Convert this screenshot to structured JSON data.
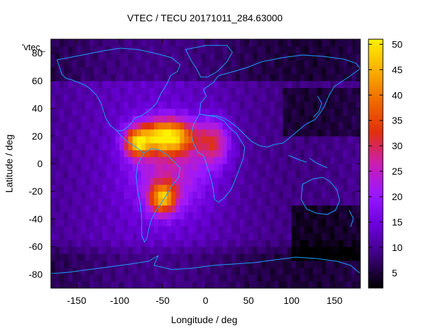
{
  "chart_data": {
    "type": "heatmap",
    "title": "VTEC / TECU 20171011_284.63000",
    "xlabel": "Longitude / deg",
    "ylabel": "Latitude / deg",
    "xlim": [
      -180,
      180
    ],
    "ylim": [
      -90,
      90
    ],
    "xticks": [
      -150,
      -100,
      -50,
      0,
      50,
      100,
      150
    ],
    "yticks": [
      -80,
      -60,
      -40,
      -20,
      0,
      20,
      40,
      60,
      80
    ],
    "colorbar": {
      "range": [
        2,
        51
      ],
      "ticks": [
        5,
        10,
        15,
        20,
        25,
        30,
        35,
        40,
        45,
        50
      ],
      "colors": [
        "#000000",
        "#3a0078",
        "#6a00d8",
        "#9a18ff",
        "#c81fb0",
        "#e0300f",
        "#ee6a00",
        "#f8b000",
        "#fff000"
      ]
    },
    "overlay_label": "'vtec_",
    "peaks": [
      {
        "lon": -45,
        "lat": 20,
        "value": 50
      },
      {
        "lon": -50,
        "lat": -25,
        "value": 48
      },
      {
        "lon": -80,
        "lat": 15,
        "value": 42
      },
      {
        "lon": 10,
        "lat": 15,
        "value": 30
      }
    ]
  },
  "colors": {
    "coastline": "#1ea0ff",
    "background": "#ffffff"
  }
}
